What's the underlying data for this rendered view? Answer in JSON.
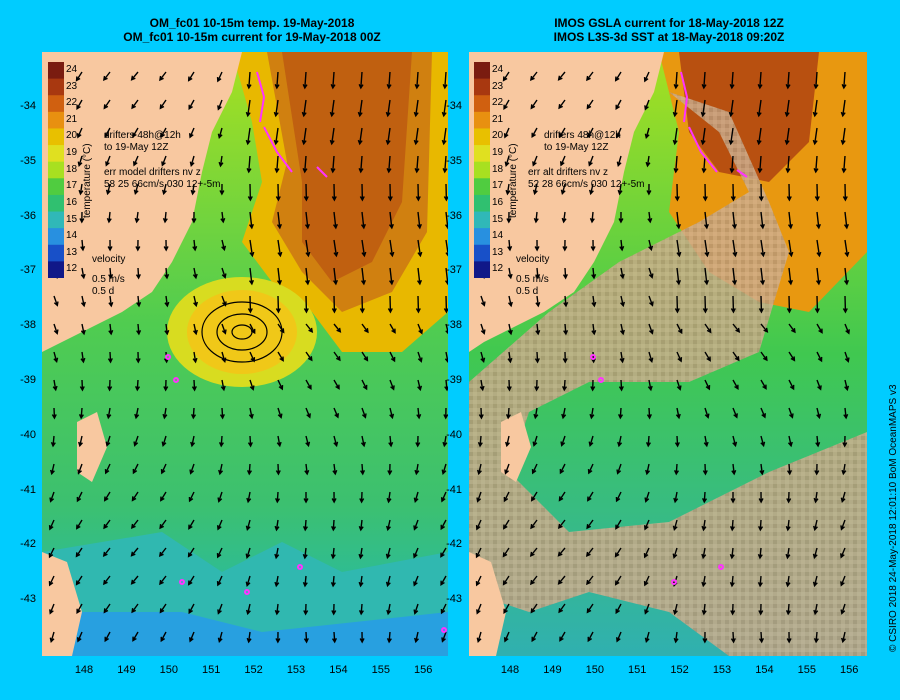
{
  "left_panel": {
    "title_line1": "OM_fc01 10-15m temp. 19-May-2018",
    "title_line2": "OM_fc01 10-15m current for 19-May-2018 00Z",
    "drifters_label_1": "drifters 48h@12h",
    "drifters_label_2": "to 19-May 12Z",
    "err_label_1": "err model drifters nv z",
    "err_label_2": "58 25 66cm/s 030 12+-5m",
    "velocity_label": "velocity",
    "velocity_scale_1": "0.5 m/s",
    "velocity_scale_2": "0.5 d"
  },
  "right_panel": {
    "title_line1": "IMOS GSLA current for 18-May-2018 12Z",
    "title_line2": "IMOS L3S-3d SST at 18-May-2018 09:20Z",
    "drifters_label_1": "drifters 48h@12h",
    "drifters_label_2": "to 19-May 12Z",
    "err_label_1": "err alt drifters nv z",
    "err_label_2": "52 28 66cm/s 030 12+-5m",
    "velocity_label": "velocity",
    "velocity_scale_1": "0.5 m/s",
    "velocity_scale_2": "0.5 d"
  },
  "colorbar": {
    "title": "temperature (°C)",
    "ticks": [
      "24",
      "23",
      "22",
      "21",
      "20",
      "19",
      "18",
      "17",
      "16",
      "15",
      "14",
      "13",
      "12"
    ]
  },
  "axes": {
    "lat_labels": [
      "-34",
      "-35",
      "-36",
      "-37",
      "-38",
      "-39",
      "-40",
      "-41",
      "-42",
      "-43"
    ],
    "lon_labels": [
      "148",
      "149",
      "150",
      "151",
      "152",
      "153",
      "154",
      "155",
      "156"
    ]
  },
  "credit": "© CSIRO 2018  24-May-2018 12:01:10 BoM OceanMAPS v3",
  "colors": {
    "background": "#00ccff",
    "land": "#f8c8a0",
    "cloud": "#c8a888",
    "drifter": "#ff33ff"
  }
}
